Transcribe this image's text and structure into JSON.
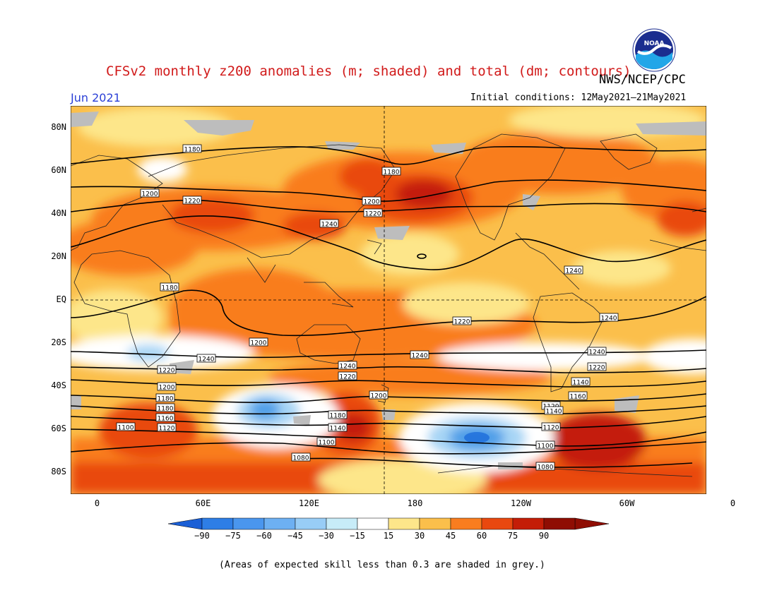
{
  "header": {
    "title": "CFSv2 monthly z200 anomalies (m; shaded) and total (dm; contours)",
    "agency": "NWS/NCEP/CPC",
    "month": "Jun 2021",
    "initial_conditions": "Initial conditions: 12May2021–21May2021",
    "logo_text": "NOAA"
  },
  "map": {
    "lat_labels": [
      "80N",
      "60N",
      "40N",
      "20N",
      "EQ",
      "20S",
      "40S",
      "60S",
      "80S"
    ],
    "lon_labels": [
      "0",
      "60E",
      "120E",
      "180",
      "120W",
      "60W",
      "0"
    ],
    "contour_labels": [
      "1180",
      "1200",
      "1220",
      "1240",
      "1180",
      "1200",
      "1220",
      "1240",
      "1180",
      "1200",
      "1220",
      "1240",
      "1240",
      "1240",
      "1240",
      "1240",
      "1220",
      "1220",
      "1220",
      "1200",
      "1200",
      "1180",
      "1180",
      "1180",
      "1160",
      "1140",
      "1120",
      "1100",
      "1140",
      "1120",
      "1100",
      "1080",
      "1160",
      "1140",
      "1120",
      "1100",
      "1080"
    ],
    "shading_colors": {
      "neg_strong": "#1565d8",
      "neg_medium": "#4f9fe8",
      "neg_light": "#a7d5f5",
      "neutral": "#ffffff",
      "pos_15": "#fde68a",
      "pos_30": "#fbbf4b",
      "pos_45": "#f97d1f",
      "pos_60": "#e9480f",
      "pos_75": "#c41d07",
      "low_skill": "#bdbdbd"
    }
  },
  "colorbar": {
    "labels": [
      "−90",
      "−75",
      "−60",
      "−45",
      "−30",
      "−15",
      "15",
      "30",
      "45",
      "60",
      "75",
      "90"
    ],
    "colors": [
      "#1a5fd6",
      "#2e7ee6",
      "#4a96ee",
      "#6db0f2",
      "#98cdf6",
      "#c7ecf8",
      "#ffffff",
      "#fde68a",
      "#fbbf4b",
      "#f97d1f",
      "#e9480f",
      "#c41d07",
      "#8f0d03"
    ]
  },
  "footnote": "(Areas of expected skill less than 0.3 are shaded in grey.)"
}
